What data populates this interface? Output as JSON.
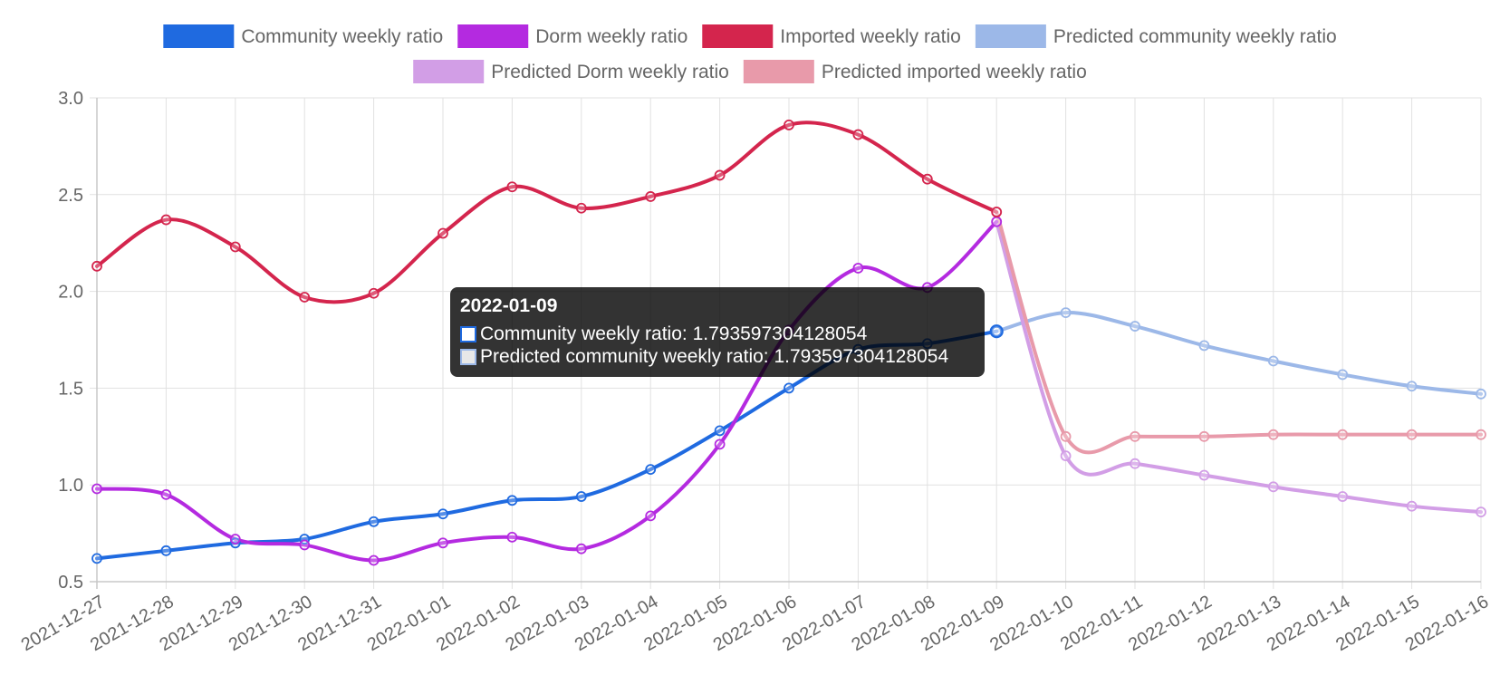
{
  "chart_data": {
    "type": "line",
    "x": [
      "2021-12-27",
      "2021-12-28",
      "2021-12-29",
      "2021-12-30",
      "2021-12-31",
      "2022-01-01",
      "2022-01-02",
      "2022-01-03",
      "2022-01-04",
      "2022-01-05",
      "2022-01-06",
      "2022-01-07",
      "2022-01-08",
      "2022-01-09",
      "2022-01-10",
      "2022-01-11",
      "2022-01-12",
      "2022-01-13",
      "2022-01-14",
      "2022-01-15",
      "2022-01-16"
    ],
    "ylim": [
      0.5,
      3.0
    ],
    "yticks": [
      "0.5",
      "1.0",
      "1.5",
      "2.0",
      "2.5",
      "3.0"
    ],
    "grid": true,
    "legend_position": "top-center",
    "series": [
      {
        "name": "Community weekly ratio",
        "color": "#1f6ae0",
        "values": [
          0.62,
          0.66,
          0.7,
          0.72,
          0.81,
          0.85,
          0.92,
          0.94,
          1.08,
          1.28,
          1.5,
          1.7,
          1.73,
          1.793597304128054,
          null,
          null,
          null,
          null,
          null,
          null,
          null
        ]
      },
      {
        "name": "Dorm weekly ratio",
        "color": "#b42ae0",
        "values": [
          0.98,
          0.95,
          0.72,
          0.69,
          0.61,
          0.7,
          0.73,
          0.67,
          0.84,
          1.21,
          1.8,
          2.12,
          2.02,
          2.36,
          null,
          null,
          null,
          null,
          null,
          null,
          null
        ]
      },
      {
        "name": "Imported weekly ratio",
        "color": "#d4254d",
        "values": [
          2.13,
          2.37,
          2.23,
          1.97,
          1.99,
          2.3,
          2.54,
          2.43,
          2.49,
          2.6,
          2.86,
          2.81,
          2.58,
          2.41,
          null,
          null,
          null,
          null,
          null,
          null,
          null
        ]
      },
      {
        "name": "Predicted community weekly ratio",
        "color": "#9cb8e8",
        "values": [
          null,
          null,
          null,
          null,
          null,
          null,
          null,
          null,
          null,
          null,
          null,
          null,
          null,
          1.793597304128054,
          1.89,
          1.82,
          1.72,
          1.64,
          1.57,
          1.51,
          1.47
        ]
      },
      {
        "name": "Predicted Dorm weekly ratio",
        "color": "#d29ee6",
        "values": [
          null,
          null,
          null,
          null,
          null,
          null,
          null,
          null,
          null,
          null,
          null,
          null,
          null,
          2.36,
          1.15,
          1.11,
          1.05,
          0.99,
          0.94,
          0.89,
          0.86
        ]
      },
      {
        "name": "Predicted imported weekly ratio",
        "color": "#e89aaa",
        "values": [
          null,
          null,
          null,
          null,
          null,
          null,
          null,
          null,
          null,
          null,
          null,
          null,
          null,
          2.41,
          1.25,
          1.25,
          1.25,
          1.26,
          1.26,
          1.26,
          1.26
        ]
      }
    ],
    "tooltip": {
      "title": "2022-01-09",
      "lines": [
        {
          "text": "Community weekly ratio: 1.793597304128054",
          "color": "#1f6ae0",
          "fill": "#ffffff"
        },
        {
          "text": "Predicted community weekly ratio: 1.793597304128054",
          "color": "#9cb8e8",
          "fill": "#e8e8e8"
        }
      ]
    }
  }
}
